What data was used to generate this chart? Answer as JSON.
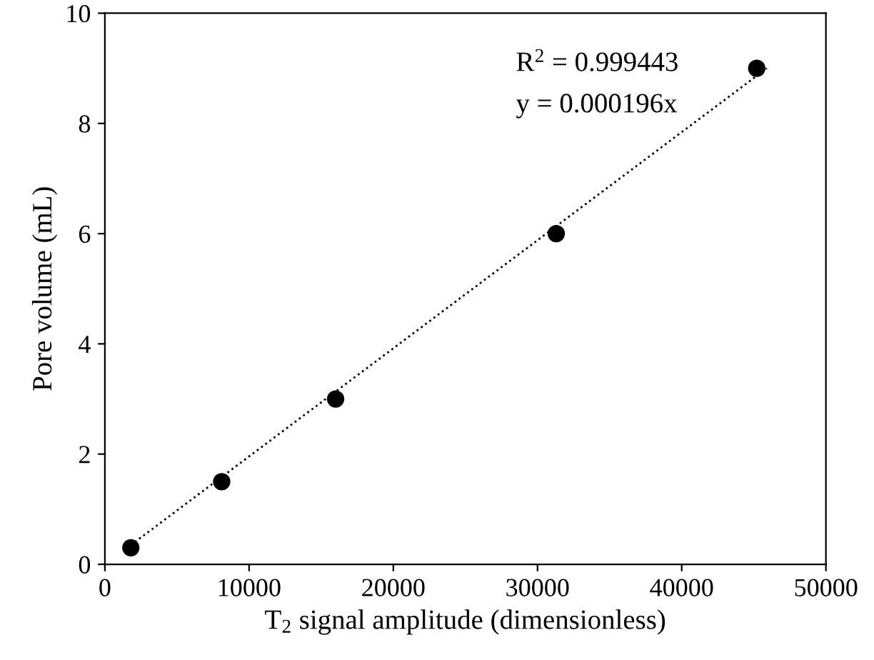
{
  "chart_data": {
    "type": "scatter",
    "xlabel": "T$_{2}$ signal amplitude (dimensionless)",
    "ylabel": "Pore volume (mL)",
    "x": [
      1800,
      8100,
      16000,
      31300,
      45200
    ],
    "series": [
      {
        "color": "#000000",
        "marker": "circle",
        "values": [
          0.3,
          1.5,
          3.0,
          6.0,
          9.0
        ]
      },
      {
        "type": "line",
        "color": "#000000",
        "line_style": "dotted",
        "marker": "none",
        "x": [
          1500,
          45900
        ],
        "values": [
          0.29,
          9.0
        ]
      }
    ],
    "annotations": [
      {
        "text": "R$^{2}$ = 0.999443"
      },
      {
        "text": "y = 0.000196x"
      }
    ],
    "xlim": [
      0,
      50000
    ],
    "xticks": [
      0,
      10000,
      20000,
      30000,
      40000,
      50000
    ],
    "ylim": [
      0,
      10
    ],
    "yticks": [
      0,
      2,
      4,
      6,
      8,
      10
    ],
    "grid": false,
    "legend": false
  }
}
